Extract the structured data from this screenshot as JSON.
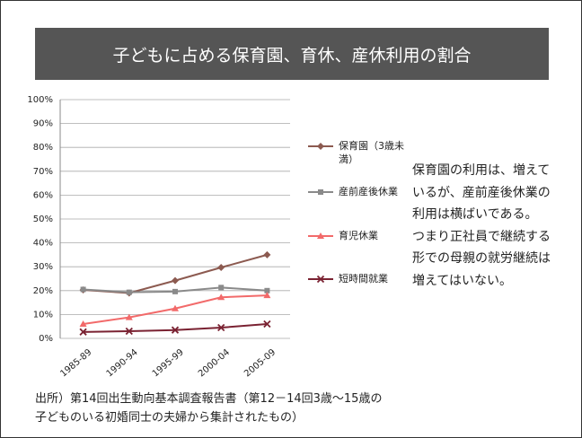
{
  "chart_data": {
    "type": "line",
    "title": "子どもに占める保育園、育休、産休利用の割合",
    "categories": [
      "1985-89",
      "1990-94",
      "1995-99",
      "2000-04",
      "2005-09"
    ],
    "series": [
      {
        "name": "保育園（3歳未満）",
        "color": "#8c5a50",
        "marker": "diamond",
        "values": [
          20.3,
          19.0,
          24.2,
          29.7,
          35.0
        ]
      },
      {
        "name": "産前産後休業",
        "color": "#8a8a8a",
        "marker": "square",
        "values": [
          20.5,
          19.3,
          19.6,
          21.3,
          20.0
        ]
      },
      {
        "name": "育児休業",
        "color": "#f26a6a",
        "marker": "triangle",
        "values": [
          6.0,
          8.8,
          12.5,
          17.2,
          18.0
        ]
      },
      {
        "name": "短時間就業",
        "color": "#7a2232",
        "marker": "x",
        "values": [
          2.7,
          3.0,
          3.5,
          4.5,
          6.0
        ]
      }
    ],
    "ylim": [
      0,
      100
    ],
    "yticks": [
      {
        "value": 0,
        "label": "0%"
      },
      {
        "value": 10,
        "label": "10%"
      },
      {
        "value": 20,
        "label": "20%"
      },
      {
        "value": 30,
        "label": "30%"
      },
      {
        "value": 40,
        "label": "40%"
      },
      {
        "value": 50,
        "label": "50%"
      },
      {
        "value": 60,
        "label": "60%"
      },
      {
        "value": 70,
        "label": "70%"
      },
      {
        "value": 80,
        "label": "80%"
      },
      {
        "value": 90,
        "label": "90%"
      },
      {
        "value": 100,
        "label": "100%"
      }
    ],
    "grid": true,
    "annotation_lines": [
      "保育園の利用は、増えて",
      "いるが、産前産後休業の",
      "利用は横ばいである。",
      "つまり正社員で継続する",
      "形での母親の就労継続は",
      "増えてはいない。"
    ],
    "source_lines": [
      "出所）第14回出生動向基本調査報告書（第12－14回3歳～15歳の",
      "子どものいる初婚同士の夫婦から集計されたもの）"
    ]
  }
}
